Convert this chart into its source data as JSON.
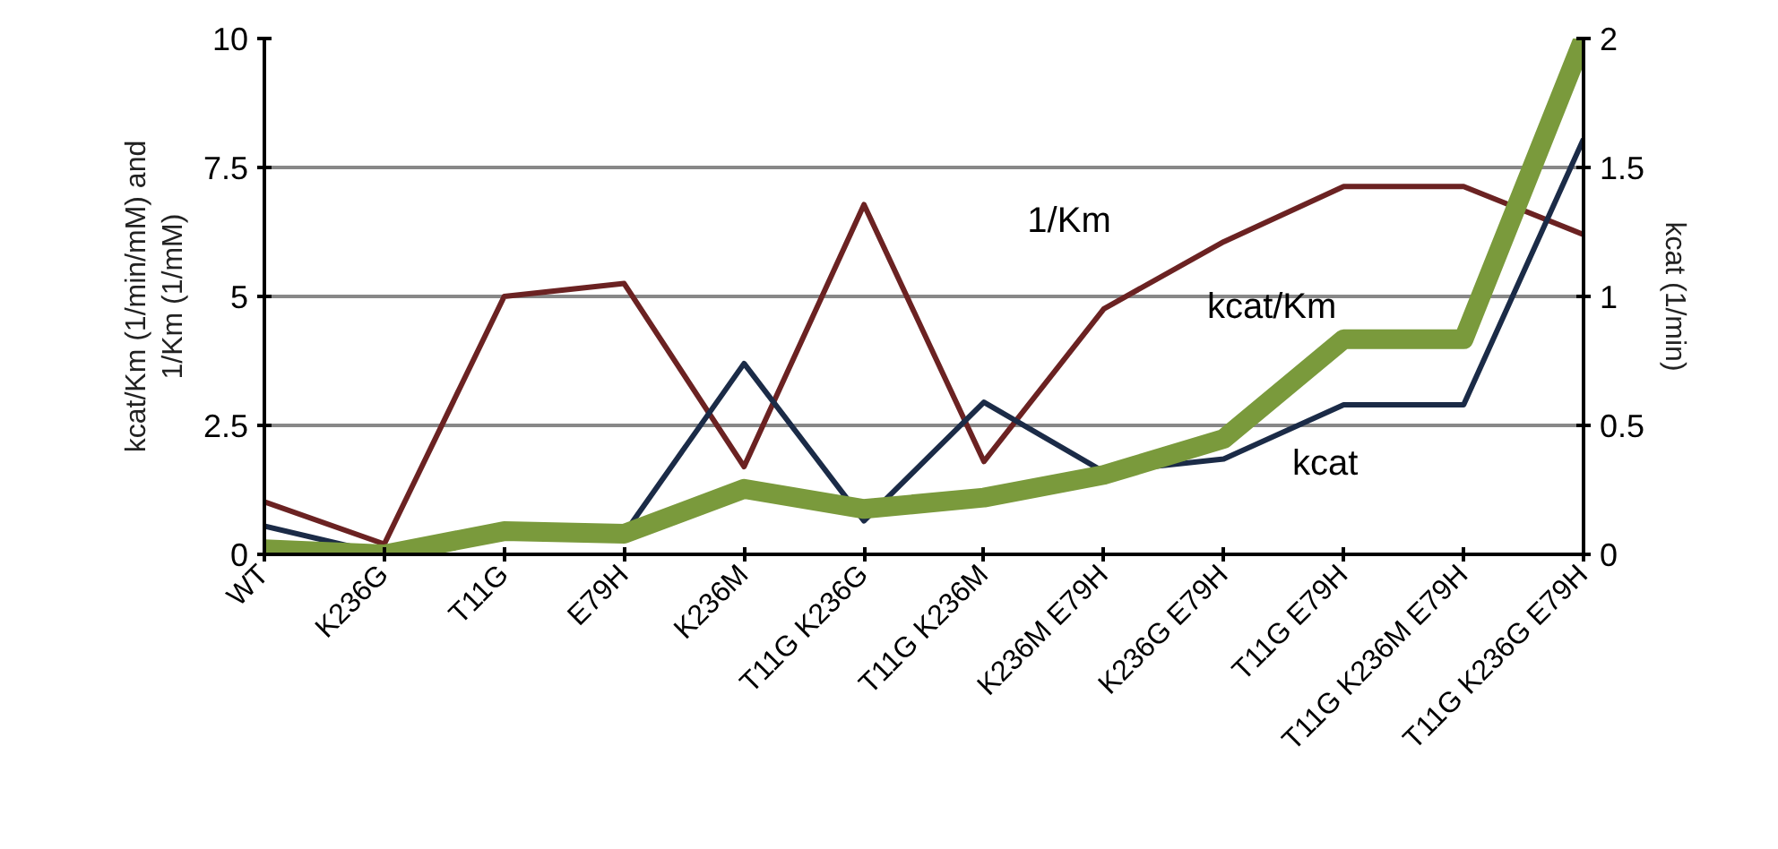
{
  "chart_data": {
    "type": "line",
    "xlabel": null,
    "ylabel": "kcat/Km (1/min/mM) and\n1/Km (1/mM)",
    "y2label": "kcat (1/min)",
    "categories": [
      "WT",
      "K236G",
      "T11G",
      "E79H",
      "K236M",
      "T11G K236G",
      "T11G K236M",
      "K236M E79H",
      "K236G E79H",
      "T11G E79H",
      "T11G K236M E79H",
      "T11G K236G E79H"
    ],
    "series": [
      {
        "name": "1/Km",
        "color": "#6b2222",
        "values": [
          1.02,
          0.2,
          5.0,
          5.25,
          1.7,
          6.78,
          1.8,
          4.76,
          6.06,
          7.13,
          7.13,
          6.2
        ]
      },
      {
        "name": "kcat",
        "color": "#1b2b47",
        "axis": "y2",
        "values": [
          0.11,
          0.0,
          0.09,
          0.08,
          0.74,
          0.13,
          0.59,
          0.32,
          0.37,
          0.58,
          0.58,
          1.61
        ]
      },
      {
        "name": "kcat/Km",
        "color": "#7a9a3c",
        "values": [
          0.1,
          0.0,
          0.45,
          0.4,
          1.27,
          0.88,
          1.1,
          1.54,
          2.24,
          4.17,
          4.17,
          10.0
        ]
      }
    ],
    "ylim": [
      0,
      10
    ],
    "yticks": [
      0,
      {
        "value": 2.5,
        "label": "2.5"
      },
      5,
      {
        "value": 7.5,
        "label": "7.5"
      },
      10
    ],
    "y2lim": [
      0,
      2
    ],
    "y2ticks": [
      0,
      0.5,
      1,
      1.5,
      2
    ],
    "grid": "y",
    "marker": "none",
    "line_style": "solid",
    "legend": false
  }
}
